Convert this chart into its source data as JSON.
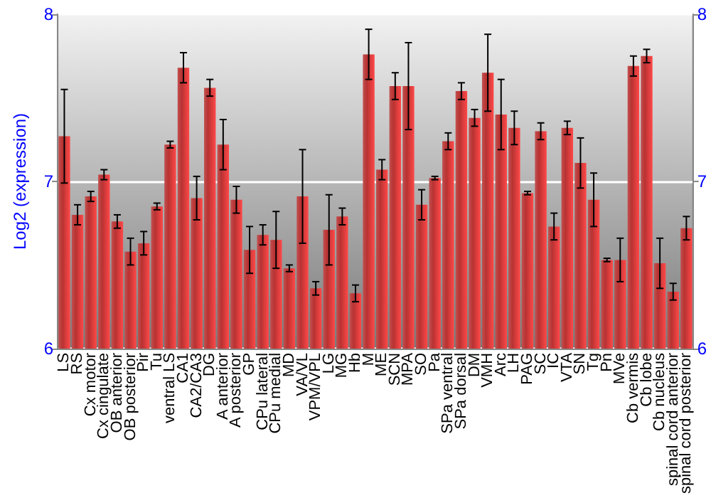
{
  "chart_data": {
    "type": "bar",
    "ylabel": "Log2 (expression)",
    "categories": [
      "LS",
      "RS",
      "Cx motor",
      "Cx cingulate",
      "OB anterior",
      "OB posterior",
      "Pir",
      "Tu",
      "ventral LS",
      "CA1",
      "CA2/CA3",
      "DG",
      "A anterior",
      "A posterior",
      "GP",
      "CPu lateral",
      "CPu medial",
      "MD",
      "VA/VL",
      "VPM/VPL",
      "LG",
      "MG",
      "Hb",
      "M",
      "ME",
      "SCN",
      "MPA",
      "SO",
      "Pa",
      "SPa ventral",
      "SPa dorsal",
      "DM",
      "VMH",
      "Arc",
      "LH",
      "PAG",
      "SC",
      "IC",
      "VTA",
      "SN",
      "Tg",
      "Pn",
      "MVe",
      "Cb vermis",
      "Cb lobe",
      "Cb nucleus",
      "spinal cord anterior",
      "spinal cord posterior"
    ],
    "values": [
      7.27,
      6.8,
      6.91,
      7.04,
      6.76,
      6.58,
      6.63,
      6.85,
      7.22,
      7.68,
      6.9,
      7.56,
      7.22,
      6.89,
      6.59,
      6.68,
      6.65,
      6.48,
      6.91,
      6.36,
      6.71,
      6.79,
      6.33,
      7.76,
      7.07,
      7.57,
      7.57,
      6.86,
      7.02,
      7.24,
      7.54,
      7.38,
      7.65,
      7.4,
      7.32,
      6.93,
      7.3,
      6.73,
      7.32,
      7.11,
      6.89,
      6.53,
      6.53,
      7.69,
      7.75,
      6.51,
      6.34,
      6.72
    ],
    "errors": [
      0.28,
      0.06,
      0.03,
      0.03,
      0.04,
      0.08,
      0.07,
      0.02,
      0.02,
      0.09,
      0.13,
      0.05,
      0.15,
      0.08,
      0.14,
      0.06,
      0.17,
      0.02,
      0.28,
      0.04,
      0.21,
      0.05,
      0.05,
      0.15,
      0.06,
      0.08,
      0.26,
      0.09,
      0.01,
      0.05,
      0.05,
      0.05,
      0.23,
      0.21,
      0.1,
      0.01,
      0.05,
      0.08,
      0.04,
      0.15,
      0.16,
      0.01,
      0.13,
      0.06,
      0.04,
      0.15,
      0.05,
      0.07
    ],
    "color": "#b83232",
    "ylim": [
      6,
      8
    ],
    "yticks": [
      6,
      7,
      8
    ],
    "y2lim": [
      6,
      8
    ],
    "y2ticks": [
      6,
      7,
      8
    ],
    "grid": "y"
  }
}
